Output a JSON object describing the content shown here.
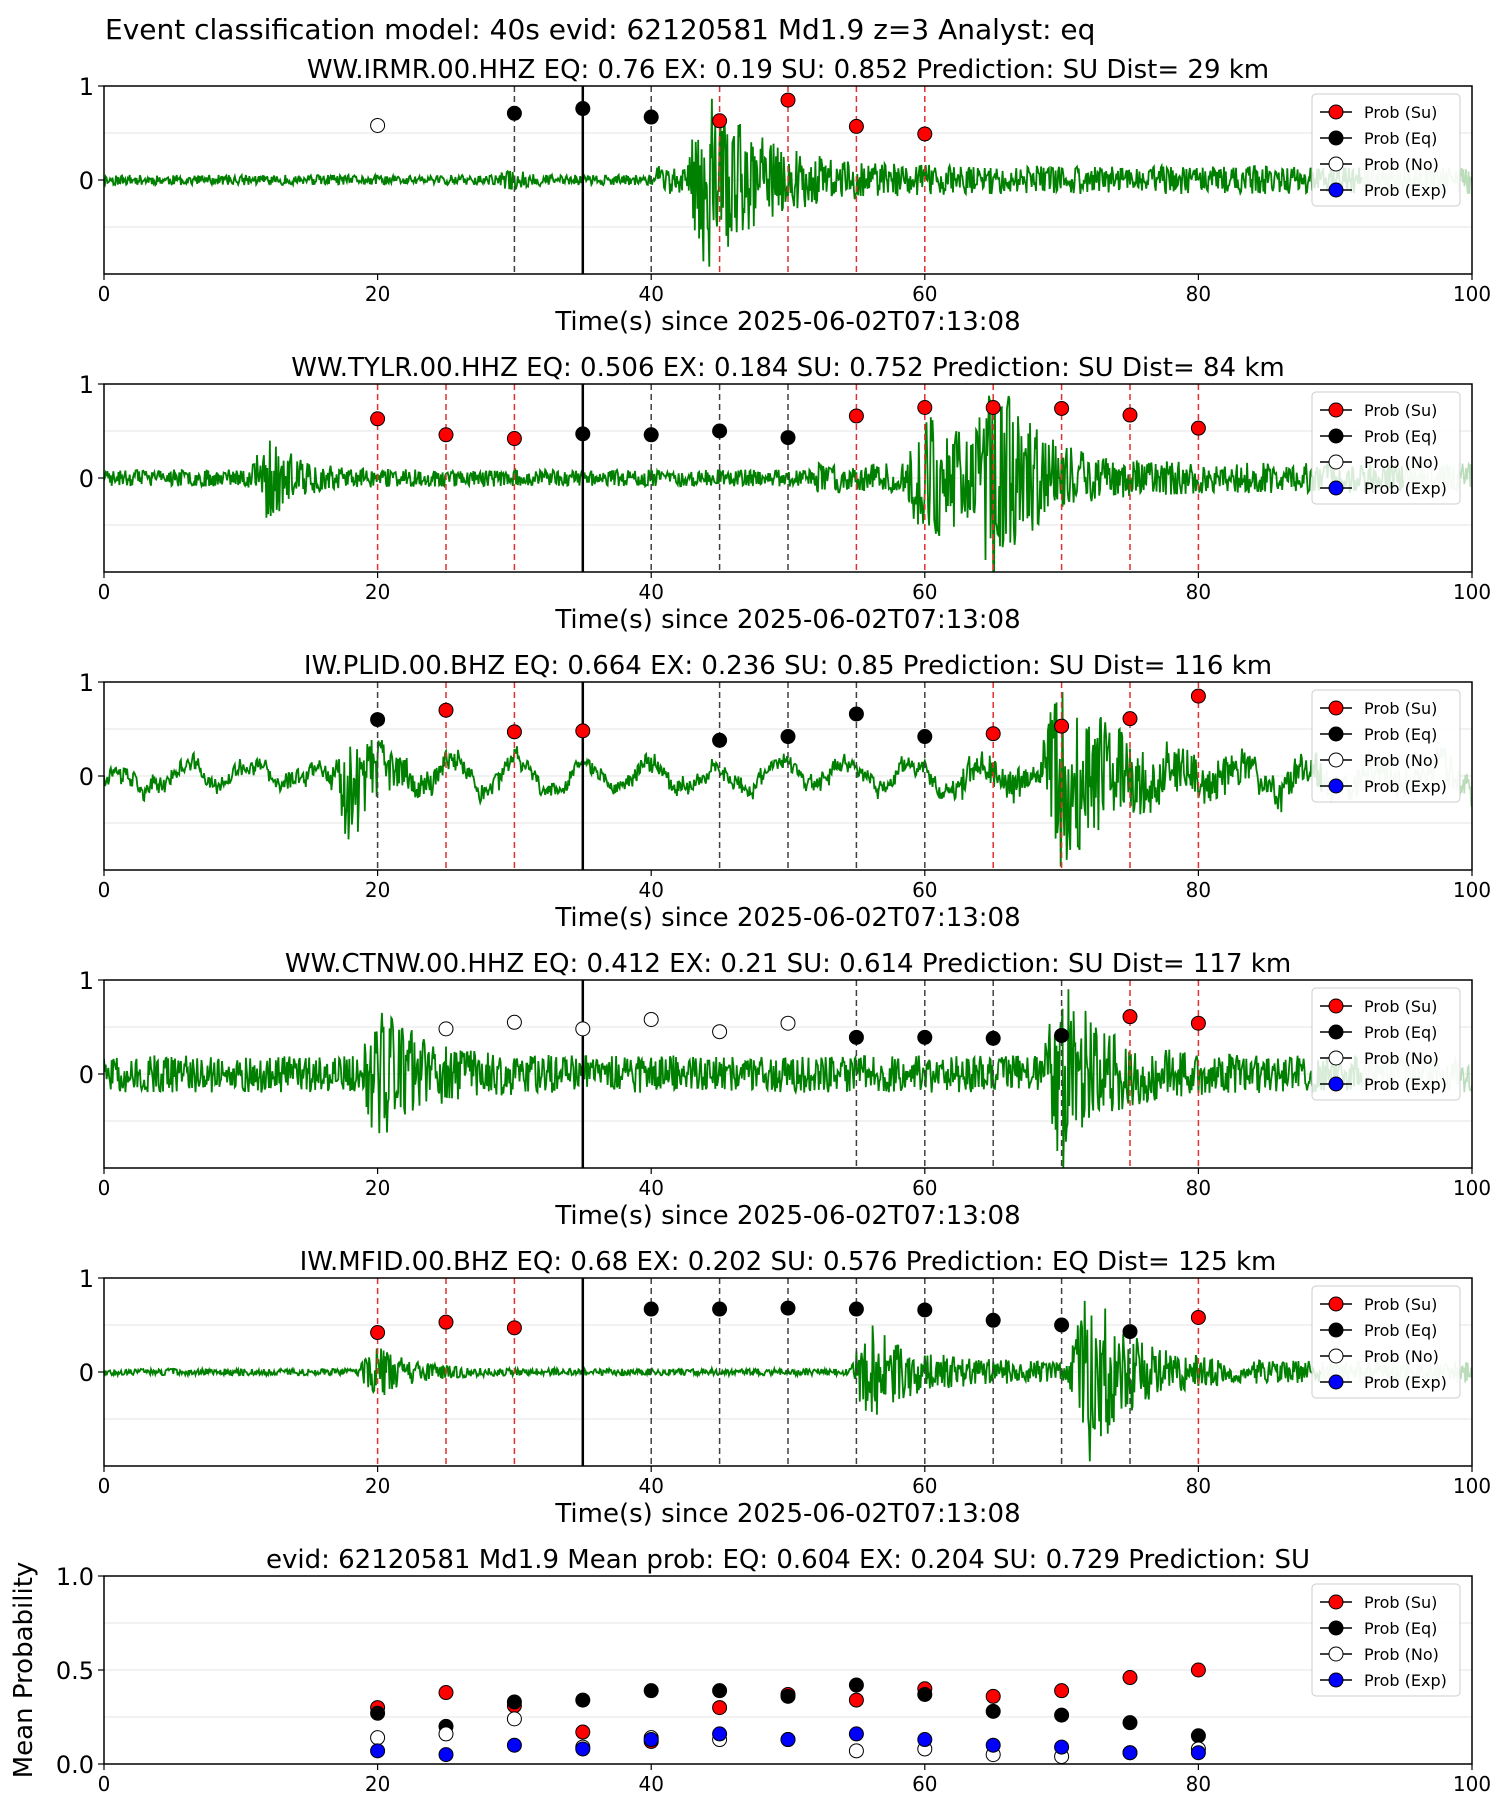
{
  "figure_title": "Event classification model: 40s evid: 62120581 Md1.9 z=3 Analyst: eq",
  "colors": {
    "waveform": "#008000",
    "su": "#ff0000",
    "eq": "#000000",
    "no": "#ffffff",
    "exp": "#0000ff",
    "eq_window_line": "#404040",
    "su_window_line": "#e03030",
    "origin_line": "#000000"
  },
  "legend": [
    {
      "key": "su",
      "label": "Prob (Su)"
    },
    {
      "key": "eq",
      "label": "Prob (Eq)"
    },
    {
      "key": "no",
      "label": "Prob (No)"
    },
    {
      "key": "exp",
      "label": "Prob (Exp)"
    }
  ],
  "chart_data": [
    {
      "type": "scatter",
      "title": "WW.IRMR.00.HHZ   EQ: 0.76  EX: 0.19  SU: 0.852   Prediction: SU    Dist= 29 km",
      "xlabel": "Time(s) since 2025-06-02T07:13:08",
      "ylabel": "",
      "xlim": [
        0,
        100
      ],
      "ylim": [
        -1,
        1
      ],
      "xticks": [
        "0",
        "20",
        "40",
        "60",
        "80",
        "100"
      ],
      "yticks": [
        "0",
        "1"
      ],
      "origin_time": 35,
      "waveform": {
        "bursts": [
          {
            "t": 44,
            "amp": 0.95,
            "dur": 8
          },
          {
            "t": 30,
            "amp": 0.08,
            "dur": 2
          }
        ],
        "noise": 0.06,
        "onset": 40,
        "coda": 0.35,
        "faded_after": 92,
        "seed": 11
      },
      "points": [
        {
          "x": 20,
          "y": 0.58,
          "class": "no",
          "window": "none"
        },
        {
          "x": 30,
          "y": 0.71,
          "class": "eq",
          "window": "eq"
        },
        {
          "x": 35,
          "y": 0.76,
          "class": "eq",
          "window": "none"
        },
        {
          "x": 40,
          "y": 0.67,
          "class": "eq",
          "window": "eq"
        },
        {
          "x": 45,
          "y": 0.63,
          "class": "su",
          "window": "su"
        },
        {
          "x": 50,
          "y": 0.85,
          "class": "su",
          "window": "su"
        },
        {
          "x": 55,
          "y": 0.57,
          "class": "su",
          "window": "su"
        },
        {
          "x": 60,
          "y": 0.49,
          "class": "su",
          "window": "su"
        }
      ]
    },
    {
      "type": "scatter",
      "title": "WW.TYLR.00.HHZ   EQ: 0.506  EX: 0.184  SU: 0.752   Prediction: SU    Dist= 84 km",
      "xlabel": "Time(s) since 2025-06-02T07:13:08",
      "ylabel": "",
      "xlim": [
        0,
        100
      ],
      "ylim": [
        -1,
        1
      ],
      "xticks": [
        "0",
        "20",
        "40",
        "60",
        "80",
        "100"
      ],
      "yticks": [
        "0",
        "1"
      ],
      "origin_time": 35,
      "waveform": {
        "bursts": [
          {
            "t": 12,
            "amp": 0.45,
            "dur": 4
          },
          {
            "t": 60,
            "amp": 0.7,
            "dur": 8
          },
          {
            "t": 65,
            "amp": 0.95,
            "dur": 6
          }
        ],
        "noise": 0.1,
        "onset": 52,
        "coda": 0.25,
        "faded_after": 95,
        "seed": 23
      },
      "points": [
        {
          "x": 20,
          "y": 0.63,
          "class": "su",
          "window": "su"
        },
        {
          "x": 25,
          "y": 0.46,
          "class": "su",
          "window": "su"
        },
        {
          "x": 30,
          "y": 0.42,
          "class": "su",
          "window": "su"
        },
        {
          "x": 35,
          "y": 0.47,
          "class": "eq",
          "window": "none"
        },
        {
          "x": 40,
          "y": 0.46,
          "class": "eq",
          "window": "eq"
        },
        {
          "x": 45,
          "y": 0.5,
          "class": "eq",
          "window": "eq"
        },
        {
          "x": 50,
          "y": 0.43,
          "class": "eq",
          "window": "eq"
        },
        {
          "x": 55,
          "y": 0.66,
          "class": "su",
          "window": "su"
        },
        {
          "x": 60,
          "y": 0.75,
          "class": "su",
          "window": "su"
        },
        {
          "x": 65,
          "y": 0.75,
          "class": "su",
          "window": "su"
        },
        {
          "x": 70,
          "y": 0.74,
          "class": "su",
          "window": "su"
        },
        {
          "x": 75,
          "y": 0.67,
          "class": "su",
          "window": "su"
        },
        {
          "x": 80,
          "y": 0.53,
          "class": "su",
          "window": "su"
        }
      ]
    },
    {
      "type": "scatter",
      "title": "IW.PLID.00.BHZ   EQ: 0.664  EX: 0.236  SU: 0.85   Prediction: SU    Dist= 116 km",
      "xlabel": "Time(s) since 2025-06-02T07:13:08",
      "ylabel": "",
      "xlim": [
        0,
        100
      ],
      "ylim": [
        -1,
        1
      ],
      "xticks": [
        "0",
        "20",
        "40",
        "60",
        "80",
        "100"
      ],
      "yticks": [
        "0",
        "1"
      ],
      "origin_time": 35,
      "waveform": {
        "bursts": [
          {
            "t": 18,
            "amp": 0.55,
            "dur": 5
          },
          {
            "t": 70,
            "amp": 0.95,
            "dur": 8
          }
        ],
        "noise": 0.09,
        "onset": 62,
        "coda": 0.3,
        "lowfreq": 0.12,
        "faded_after": 89,
        "seed": 37
      },
      "points": [
        {
          "x": 20,
          "y": 0.6,
          "class": "eq",
          "window": "eq"
        },
        {
          "x": 25,
          "y": 0.7,
          "class": "su",
          "window": "su"
        },
        {
          "x": 30,
          "y": 0.47,
          "class": "su",
          "window": "su"
        },
        {
          "x": 35,
          "y": 0.48,
          "class": "su",
          "window": "none"
        },
        {
          "x": 45,
          "y": 0.38,
          "class": "eq",
          "window": "eq"
        },
        {
          "x": 50,
          "y": 0.42,
          "class": "eq",
          "window": "eq"
        },
        {
          "x": 55,
          "y": 0.66,
          "class": "eq",
          "window": "eq"
        },
        {
          "x": 60,
          "y": 0.42,
          "class": "eq",
          "window": "eq"
        },
        {
          "x": 65,
          "y": 0.45,
          "class": "su",
          "window": "su"
        },
        {
          "x": 70,
          "y": 0.53,
          "class": "su",
          "window": "su"
        },
        {
          "x": 75,
          "y": 0.61,
          "class": "su",
          "window": "su"
        },
        {
          "x": 80,
          "y": 0.85,
          "class": "su",
          "window": "su"
        }
      ]
    },
    {
      "type": "scatter",
      "title": "WW.CTNW.00.HHZ   EQ: 0.412  EX: 0.21  SU: 0.614   Prediction: SU    Dist= 117 km",
      "xlabel": "Time(s) since 2025-06-02T07:13:08",
      "ylabel": "",
      "xlim": [
        0,
        100
      ],
      "ylim": [
        -1,
        1
      ],
      "xticks": [
        "0",
        "20",
        "40",
        "60",
        "80",
        "100"
      ],
      "yticks": [
        "0",
        "1"
      ],
      "origin_time": 35,
      "waveform": {
        "bursts": [
          {
            "t": 20,
            "amp": 0.7,
            "dur": 6
          },
          {
            "t": 70,
            "amp": 0.95,
            "dur": 6
          }
        ],
        "noise": 0.22,
        "onset": 0,
        "coda": 0.3,
        "faded_after": 92,
        "seed": 51
      },
      "points": [
        {
          "x": 25,
          "y": 0.48,
          "class": "no",
          "window": "none"
        },
        {
          "x": 30,
          "y": 0.55,
          "class": "no",
          "window": "none"
        },
        {
          "x": 35,
          "y": 0.48,
          "class": "no",
          "window": "none"
        },
        {
          "x": 40,
          "y": 0.58,
          "class": "no",
          "window": "none"
        },
        {
          "x": 45,
          "y": 0.45,
          "class": "no",
          "window": "none"
        },
        {
          "x": 50,
          "y": 0.54,
          "class": "no",
          "window": "none"
        },
        {
          "x": 55,
          "y": 0.39,
          "class": "eq",
          "window": "eq"
        },
        {
          "x": 60,
          "y": 0.39,
          "class": "eq",
          "window": "eq"
        },
        {
          "x": 65,
          "y": 0.38,
          "class": "eq",
          "window": "eq"
        },
        {
          "x": 70,
          "y": 0.41,
          "class": "eq",
          "window": "eq"
        },
        {
          "x": 75,
          "y": 0.61,
          "class": "su",
          "window": "su"
        },
        {
          "x": 80,
          "y": 0.54,
          "class": "su",
          "window": "su"
        }
      ]
    },
    {
      "type": "scatter",
      "title": "IW.MFID.00.BHZ   EQ: 0.68  EX: 0.202  SU: 0.576   Prediction: EQ    Dist= 125 km",
      "xlabel": "Time(s) since 2025-06-02T07:13:08",
      "ylabel": "",
      "xlim": [
        0,
        100
      ],
      "ylim": [
        -1,
        1
      ],
      "xticks": [
        "0",
        "20",
        "40",
        "60",
        "80",
        "100"
      ],
      "yticks": [
        "0",
        "1"
      ],
      "origin_time": 35,
      "waveform": {
        "bursts": [
          {
            "t": 20,
            "amp": 0.3,
            "dur": 5
          },
          {
            "t": 56,
            "amp": 0.45,
            "dur": 6
          },
          {
            "t": 72,
            "amp": 0.95,
            "dur": 6
          }
        ],
        "noise": 0.04,
        "onset": 55,
        "coda": 0.3,
        "faded_after": 89,
        "seed": 67
      },
      "points": [
        {
          "x": 20,
          "y": 0.42,
          "class": "su",
          "window": "su"
        },
        {
          "x": 25,
          "y": 0.53,
          "class": "su",
          "window": "su"
        },
        {
          "x": 30,
          "y": 0.47,
          "class": "su",
          "window": "su"
        },
        {
          "x": 40,
          "y": 0.67,
          "class": "eq",
          "window": "eq"
        },
        {
          "x": 45,
          "y": 0.67,
          "class": "eq",
          "window": "eq"
        },
        {
          "x": 50,
          "y": 0.68,
          "class": "eq",
          "window": "eq"
        },
        {
          "x": 55,
          "y": 0.67,
          "class": "eq",
          "window": "eq"
        },
        {
          "x": 60,
          "y": 0.66,
          "class": "eq",
          "window": "eq"
        },
        {
          "x": 65,
          "y": 0.55,
          "class": "eq",
          "window": "eq"
        },
        {
          "x": 70,
          "y": 0.5,
          "class": "eq",
          "window": "eq"
        },
        {
          "x": 75,
          "y": 0.43,
          "class": "eq",
          "window": "eq"
        },
        {
          "x": 80,
          "y": 0.58,
          "class": "su",
          "window": "su"
        }
      ]
    },
    {
      "type": "scatter",
      "title": "evid: 62120581  Md1.9   Mean prob:   EQ: 0.604  EX: 0.204  SU: 0.729   Prediction: SU",
      "xlabel": "",
      "ylabel": "Mean Probability",
      "xlim": [
        0,
        100
      ],
      "ylim": [
        0,
        1
      ],
      "xticks": [
        "0",
        "20",
        "40",
        "60",
        "80",
        "100"
      ],
      "yticks": [
        "0.0",
        "0.5",
        "1.0"
      ],
      "series": [
        {
          "key": "su",
          "name": "Prob (Su)",
          "x": [
            20,
            25,
            30,
            35,
            40,
            45,
            50,
            55,
            60,
            65,
            70,
            75,
            80
          ],
          "values": [
            0.3,
            0.38,
            0.31,
            0.17,
            0.12,
            0.3,
            0.37,
            0.34,
            0.4,
            0.36,
            0.39,
            0.46,
            0.5
          ]
        },
        {
          "key": "eq",
          "name": "Prob (Eq)",
          "x": [
            20,
            25,
            30,
            35,
            40,
            45,
            50,
            55,
            60,
            65,
            70,
            75,
            80
          ],
          "values": [
            0.27,
            0.2,
            0.33,
            0.34,
            0.39,
            0.39,
            0.36,
            0.42,
            0.37,
            0.28,
            0.26,
            0.22,
            0.15
          ]
        },
        {
          "key": "no",
          "name": "Prob (No)",
          "x": [
            20,
            25,
            30,
            35,
            40,
            45,
            50,
            55,
            60,
            65,
            70,
            75,
            80
          ],
          "values": [
            0.14,
            0.16,
            0.24,
            0.09,
            0.14,
            0.13,
            0.13,
            0.07,
            0.08,
            0.05,
            0.04,
            0.06,
            0.08
          ]
        },
        {
          "key": "exp",
          "name": "Prob (Exp)",
          "x": [
            20,
            25,
            30,
            35,
            40,
            45,
            50,
            55,
            60,
            65,
            70,
            75,
            80
          ],
          "values": [
            0.07,
            0.05,
            0.1,
            0.08,
            0.13,
            0.16,
            0.13,
            0.16,
            0.13,
            0.1,
            0.09,
            0.06,
            0.06
          ]
        }
      ]
    }
  ]
}
